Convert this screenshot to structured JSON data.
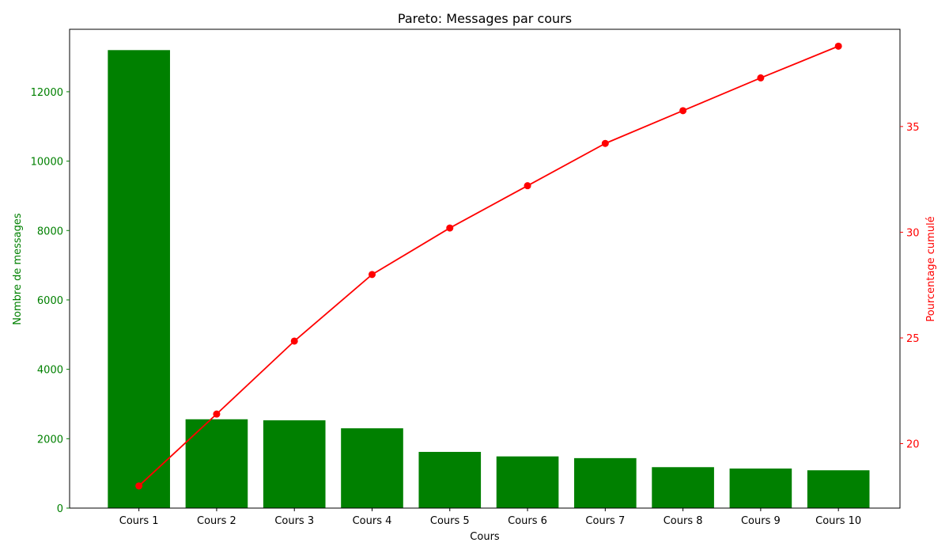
{
  "chart_data": {
    "type": "bar",
    "title": "Pareto: Messages par cours",
    "xlabel": "Cours",
    "ylabel": "Nombre de messages",
    "y2label": "Pourcentage cumulé",
    "categories": [
      "Cours 1",
      "Cours 2",
      "Cours 3",
      "Cours 4",
      "Cours 5",
      "Cours 6",
      "Cours 7",
      "Cours 8",
      "Cours 9",
      "Cours 10"
    ],
    "series": [
      {
        "type": "bar",
        "axis": "left",
        "values": [
          13200,
          2560,
          2530,
          2300,
          1620,
          1490,
          1440,
          1180,
          1140,
          1090
        ]
      },
      {
        "type": "line",
        "axis": "right",
        "values": [
          18.0,
          21.4,
          24.85,
          28.0,
          30.2,
          32.2,
          34.2,
          35.75,
          37.3,
          38.8
        ]
      }
    ],
    "ylim": [
      0,
      13800
    ],
    "yticks": [
      0,
      2000,
      4000,
      6000,
      8000,
      10000,
      12000
    ],
    "y2lim": [
      16.95,
      39.6
    ],
    "y2ticks": [
      20,
      25,
      30,
      35
    ],
    "grid": false,
    "colors": {
      "bar": "#008000",
      "line": "#ff0000",
      "left_axis": "#008000",
      "right_axis": "#ff0000"
    }
  }
}
